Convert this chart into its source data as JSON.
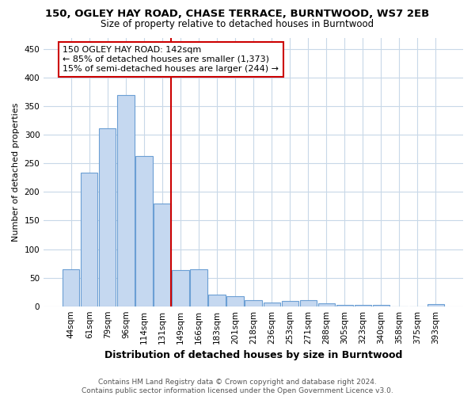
{
  "title_line1": "150, OGLEY HAY ROAD, CHASE TERRACE, BURNTWOOD, WS7 2EB",
  "title_line2": "Size of property relative to detached houses in Burntwood",
  "xlabel": "Distribution of detached houses by size in Burntwood",
  "ylabel": "Number of detached properties",
  "categories": [
    "44sqm",
    "61sqm",
    "79sqm",
    "96sqm",
    "114sqm",
    "131sqm",
    "149sqm",
    "166sqm",
    "183sqm",
    "201sqm",
    "218sqm",
    "236sqm",
    "253sqm",
    "271sqm",
    "288sqm",
    "305sqm",
    "323sqm",
    "340sqm",
    "358sqm",
    "375sqm",
    "393sqm"
  ],
  "values": [
    65,
    234,
    312,
    370,
    263,
    180,
    63,
    65,
    20,
    18,
    10,
    6,
    9,
    10,
    5,
    3,
    3,
    3,
    0,
    0,
    4
  ],
  "bar_color": "#c5d8f0",
  "bar_edge_color": "#6b9fd4",
  "vline_x": 5.5,
  "vline_color": "#cc0000",
  "annotation_line1": "150 OGLEY HAY ROAD: 142sqm",
  "annotation_line2": "← 85% of detached houses are smaller (1,373)",
  "annotation_line3": "15% of semi-detached houses are larger (244) →",
  "annotation_box_color": "#ffffff",
  "annotation_box_edge": "#cc0000",
  "ylim": [
    0,
    470
  ],
  "yticks": [
    0,
    50,
    100,
    150,
    200,
    250,
    300,
    350,
    400,
    450
  ],
  "background_color": "#ffffff",
  "grid_color": "#c8d8e8",
  "footer_text": "Contains HM Land Registry data © Crown copyright and database right 2024.\nContains public sector information licensed under the Open Government Licence v3.0.",
  "title_fontsize": 9.5,
  "subtitle_fontsize": 8.5,
  "xlabel_fontsize": 9,
  "ylabel_fontsize": 8,
  "tick_fontsize": 7.5,
  "annotation_fontsize": 8,
  "footer_fontsize": 6.5
}
